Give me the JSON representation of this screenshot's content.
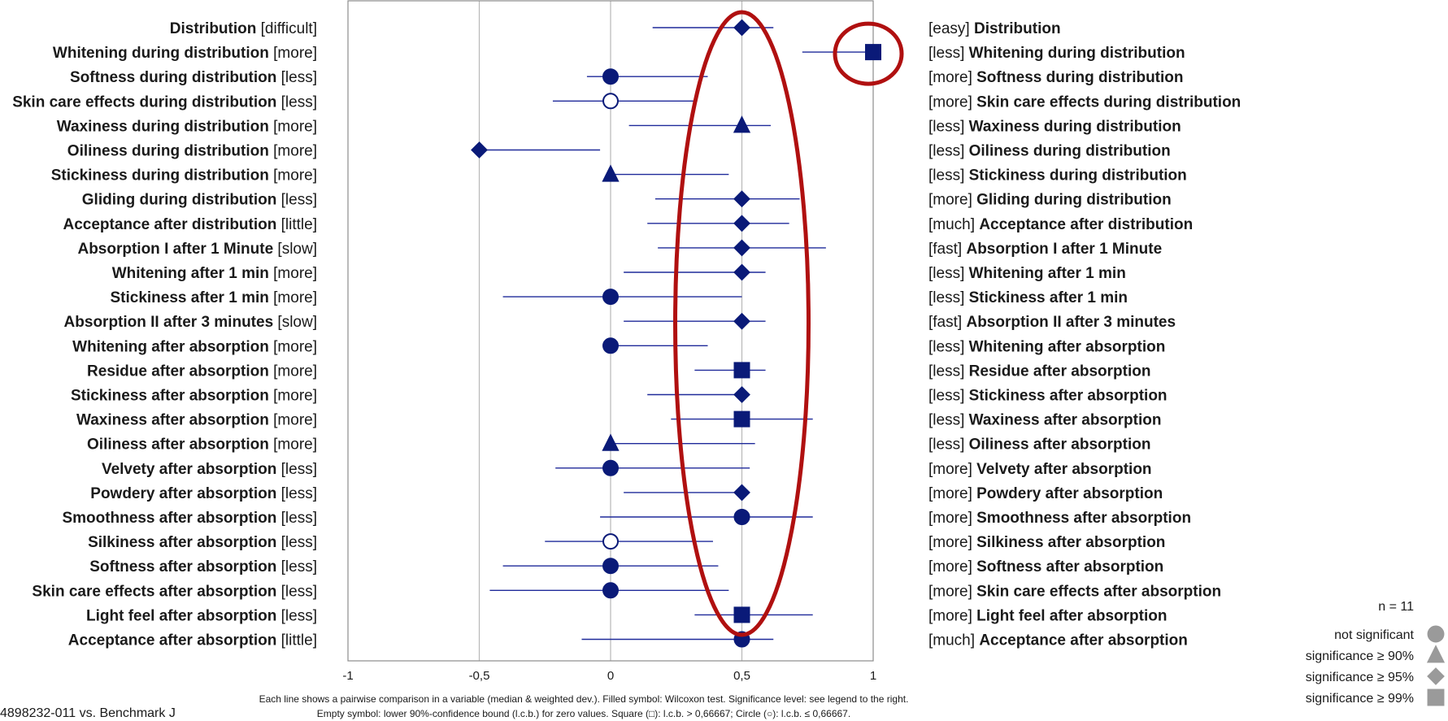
{
  "chart_data": {
    "type": "scatter",
    "xlim": [
      -1,
      1
    ],
    "x_ticks": [
      "-1",
      "-0,5",
      "0",
      "0,5",
      "1"
    ],
    "x_tick_values": [
      -1,
      -0.5,
      0,
      0.5,
      1
    ],
    "grid": "vertical",
    "rows": [
      {
        "left": "Distribution",
        "left_bracket": "[difficult]",
        "right_bracket": "[easy]",
        "right": "Distribution",
        "median": 0.5,
        "lo": 0.16,
        "hi": 0.62,
        "marker": "diamond",
        "filled": true
      },
      {
        "left": "Whitening during distribution",
        "left_bracket": "[more]",
        "right_bracket": "[less]",
        "right": "Whitening during distribution",
        "median": 1.0,
        "lo": 0.73,
        "hi": 1.0,
        "marker": "square",
        "filled": true
      },
      {
        "left": "Softness during distribution",
        "left_bracket": "[less]",
        "right_bracket": "[more]",
        "right": "Softness during distribution",
        "median": 0.0,
        "lo": -0.09,
        "hi": 0.37,
        "marker": "circle",
        "filled": true
      },
      {
        "left": "Skin care effects during distribution",
        "left_bracket": "[less]",
        "right_bracket": "[more]",
        "right": "Skin care effects during distribution",
        "median": 0.0,
        "lo": -0.22,
        "hi": 0.33,
        "marker": "circle",
        "filled": false
      },
      {
        "left": "Waxiness during distribution",
        "left_bracket": "[more]",
        "right_bracket": "[less]",
        "right": "Waxiness during distribution",
        "median": 0.5,
        "lo": 0.07,
        "hi": 0.61,
        "marker": "triangle",
        "filled": true
      },
      {
        "left": "Oiliness during distribution",
        "left_bracket": "[more]",
        "right_bracket": "[less]",
        "right": "Oiliness during distribution",
        "median": -0.5,
        "lo": -0.5,
        "hi": -0.04,
        "marker": "diamond",
        "filled": true
      },
      {
        "left": "Stickiness during distribution",
        "left_bracket": "[more]",
        "right_bracket": "[less]",
        "right": "Stickiness during distribution",
        "median": 0.0,
        "lo": 0.0,
        "hi": 0.45,
        "marker": "triangle",
        "filled": true
      },
      {
        "left": "Gliding during distribution",
        "left_bracket": "[less]",
        "right_bracket": "[more]",
        "right": "Gliding during distribution",
        "median": 0.5,
        "lo": 0.17,
        "hi": 0.72,
        "marker": "diamond",
        "filled": true
      },
      {
        "left": "Acceptance after distribution",
        "left_bracket": "[little]",
        "right_bracket": "[much]",
        "right": "Acceptance after distribution",
        "median": 0.5,
        "lo": 0.14,
        "hi": 0.68,
        "marker": "diamond",
        "filled": true
      },
      {
        "left": "Absorption I after 1 Minute",
        "left_bracket": "[slow]",
        "right_bracket": "[fast]",
        "right": "Absorption I after 1 Minute",
        "median": 0.5,
        "lo": 0.18,
        "hi": 0.82,
        "marker": "diamond",
        "filled": true
      },
      {
        "left": "Whitening after 1 min",
        "left_bracket": "[more]",
        "right_bracket": "[less]",
        "right": "Whitening after 1 min",
        "median": 0.5,
        "lo": 0.05,
        "hi": 0.59,
        "marker": "diamond",
        "filled": true
      },
      {
        "left": "Stickiness after 1 min",
        "left_bracket": "[more]",
        "right_bracket": "[less]",
        "right": "Stickiness after 1 min",
        "median": 0.0,
        "lo": -0.41,
        "hi": 0.5,
        "marker": "circle",
        "filled": true
      },
      {
        "left": "Absorption II after 3 minutes",
        "left_bracket": "[slow]",
        "right_bracket": "[fast]",
        "right": "Absorption II after 3 minutes",
        "median": 0.5,
        "lo": 0.05,
        "hi": 0.59,
        "marker": "diamond",
        "filled": true
      },
      {
        "left": "Whitening after absorption",
        "left_bracket": "[more]",
        "right_bracket": "[less]",
        "right": "Whitening after absorption",
        "median": 0.0,
        "lo": 0.0,
        "hi": 0.37,
        "marker": "circle",
        "filled": true
      },
      {
        "left": "Residue after absorption",
        "left_bracket": "[more]",
        "right_bracket": "[less]",
        "right": "Residue after absorption",
        "median": 0.5,
        "lo": 0.32,
        "hi": 0.59,
        "marker": "square",
        "filled": true
      },
      {
        "left": "Stickiness after absorption",
        "left_bracket": "[more]",
        "right_bracket": "[less]",
        "right": "Stickiness after absorption",
        "median": 0.5,
        "lo": 0.14,
        "hi": 0.5,
        "marker": "diamond",
        "filled": true
      },
      {
        "left": "Waxiness after absorption",
        "left_bracket": "[more]",
        "right_bracket": "[less]",
        "right": "Waxiness after absorption",
        "median": 0.5,
        "lo": 0.23,
        "hi": 0.77,
        "marker": "square",
        "filled": true
      },
      {
        "left": "Oiliness after absorption",
        "left_bracket": "[more]",
        "right_bracket": "[less]",
        "right": "Oiliness after absorption",
        "median": 0.0,
        "lo": 0.0,
        "hi": 0.55,
        "marker": "triangle",
        "filled": true
      },
      {
        "left": "Velvety after absorption",
        "left_bracket": "[less]",
        "right_bracket": "[more]",
        "right": "Velvety after absorption",
        "median": 0.0,
        "lo": -0.21,
        "hi": 0.53,
        "marker": "circle",
        "filled": true
      },
      {
        "left": "Powdery after absorption",
        "left_bracket": "[less]",
        "right_bracket": "[more]",
        "right": "Powdery after absorption",
        "median": 0.5,
        "lo": 0.05,
        "hi": 0.5,
        "marker": "diamond",
        "filled": true
      },
      {
        "left": "Smoothness after absorption",
        "left_bracket": "[less]",
        "right_bracket": "[more]",
        "right": "Smoothness after absorption",
        "median": 0.5,
        "lo": -0.04,
        "hi": 0.77,
        "marker": "circle",
        "filled": true
      },
      {
        "left": "Silkiness after absorption",
        "left_bracket": "[less]",
        "right_bracket": "[more]",
        "right": "Silkiness after absorption",
        "median": 0.0,
        "lo": -0.25,
        "hi": 0.39,
        "marker": "circle",
        "filled": false
      },
      {
        "left": "Softness after absorption",
        "left_bracket": "[less]",
        "right_bracket": "[more]",
        "right": "Softness after absorption",
        "median": 0.0,
        "lo": -0.41,
        "hi": 0.41,
        "marker": "circle",
        "filled": true
      },
      {
        "left": "Skin care effects after absorption",
        "left_bracket": "[less]",
        "right_bracket": "[more]",
        "right": "Skin care effects after absorption",
        "median": 0.0,
        "lo": -0.46,
        "hi": 0.45,
        "marker": "circle",
        "filled": true
      },
      {
        "left": "Light feel after absorption",
        "left_bracket": "[less]",
        "right_bracket": "[more]",
        "right": "Light feel after absorption",
        "median": 0.5,
        "lo": 0.32,
        "hi": 0.77,
        "marker": "square",
        "filled": true
      },
      {
        "left": "Acceptance after absorption",
        "left_bracket": "[little]",
        "right_bracket": "[much]",
        "right": "Acceptance after absorption",
        "median": 0.5,
        "lo": -0.11,
        "hi": 0.62,
        "marker": "circle",
        "filled": true
      }
    ],
    "legend": {
      "n_label": "n = 11",
      "entries": [
        {
          "label": "not significant",
          "marker": "circle"
        },
        {
          "label": "significance ≥ 90%",
          "marker": "triangle"
        },
        {
          "label": "significance ≥ 95%",
          "marker": "diamond"
        },
        {
          "label": "significance ≥ 99%",
          "marker": "square"
        }
      ]
    },
    "footnote_line1": "Each line shows a pairwise comparison in a variable (median & weighted dev.). Filled symbol: Wilcoxon test. Significance level: see legend to the right.",
    "footnote_line2": "Empty symbol: lower 90%-confidence bound (l.c.b.) for zero values. Square (□): l.c.b. > 0,66667; Circle (○): l.c.b. ≤ 0,66667.",
    "product_label": "4898232-011 vs. Benchmark J",
    "colors": {
      "marker": "#0a1a78",
      "error_bar": "#1f2a9a",
      "highlight": "#b01010",
      "grid": "#b8b8b8",
      "frame": "#8c8c8c",
      "legend_marker": "#9a9a9a"
    }
  }
}
